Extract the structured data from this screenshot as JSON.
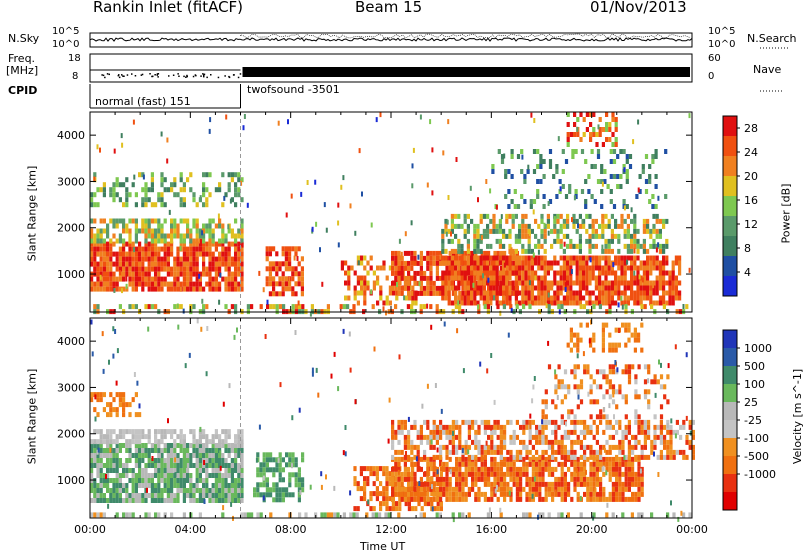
{
  "header": {
    "station": "Rankin Inlet (fitACF)",
    "beam": "Beam 15",
    "date": "01/Nov/2013"
  },
  "noise_panel": {
    "left_label": "N.Sky",
    "right_label": "N.Search",
    "left_ticks": [
      "10^5",
      "10^0"
    ],
    "right_ticks": [
      "10^5",
      "10^0"
    ]
  },
  "freq_panel": {
    "left_label_1": "Freq.",
    "left_label_2": "[MHz]",
    "right_label": "Nave",
    "left_ticks": [
      "18",
      "8"
    ],
    "right_ticks": [
      "60",
      "0"
    ]
  },
  "cpid": {
    "label": "CPID",
    "segments": [
      {
        "name": "normal (fast) 151",
        "start_hour": 0,
        "end_hour": 6
      },
      {
        "name": "twofsound -3501",
        "start_hour": 6,
        "end_hour": 24
      }
    ]
  },
  "colors": {
    "power_scale": [
      "#1a2bd6",
      "#1f4fa3",
      "#3f7f5f",
      "#5a9a6a",
      "#7ec850",
      "#e0c020",
      "#f08020",
      "#f05010",
      "#e01010"
    ],
    "velocity_scale": [
      "#2035b8",
      "#2a5aa8",
      "#3f8a6a",
      "#69b85c",
      "#b8b8b8",
      "#c4c4c4",
      "#f09020",
      "#f07010",
      "#e83010",
      "#e00000"
    ]
  },
  "chart_data": [
    {
      "type": "heatmap",
      "name": "Power",
      "ylabel": "Slant Range [km]",
      "xlabel": "Time UT",
      "x_ticks": [
        "00:00",
        "04:00",
        "08:00",
        "12:00",
        "16:00",
        "20:00",
        "00:00"
      ],
      "x_range_hours": [
        0,
        24
      ],
      "y_ticks": [
        1000,
        2000,
        3000,
        4000
      ],
      "ylim": [
        180,
        4500
      ],
      "colorbar_label": "Power [dB]",
      "colorbar_ticks": [
        4,
        8,
        12,
        16,
        20,
        24,
        28
      ],
      "colorbar_range": [
        0,
        30
      ]
    },
    {
      "type": "heatmap",
      "name": "Velocity",
      "ylabel": "Slant Range [km]",
      "xlabel": "Time UT",
      "x_ticks": [
        "00:00",
        "04:00",
        "08:00",
        "12:00",
        "16:00",
        "20:00",
        "00:00"
      ],
      "x_range_hours": [
        0,
        24
      ],
      "y_ticks": [
        1000,
        2000,
        3000,
        4000
      ],
      "ylim": [
        180,
        4500
      ],
      "colorbar_label": "Velocity [m s^-1]",
      "colorbar_ticks": [
        1000,
        500,
        100,
        25,
        -25,
        -100,
        -500,
        -1000
      ]
    }
  ],
  "x_axis_title": "Time UT"
}
